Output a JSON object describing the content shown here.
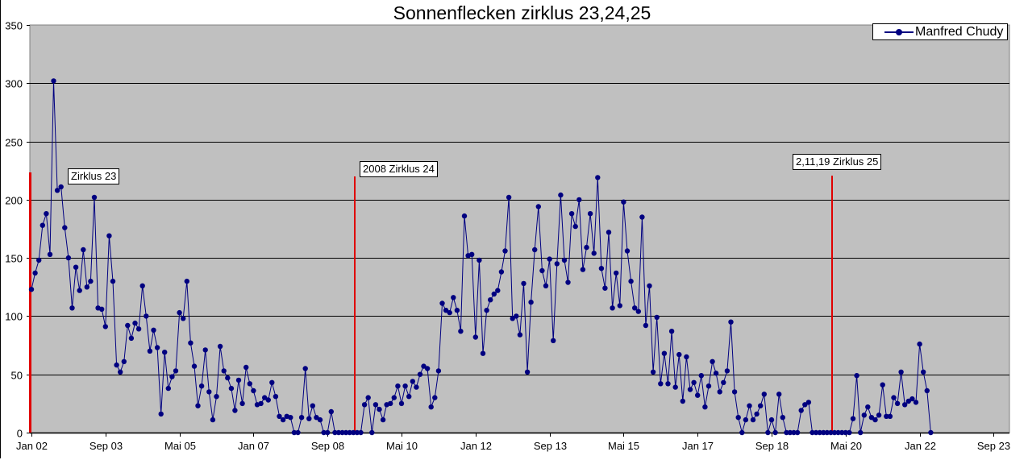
{
  "chart_data": {
    "type": "line",
    "title": "Sonnenflecken zirklus 23,24,25",
    "xlabel": "",
    "ylabel": "",
    "ylim": [
      0,
      350
    ],
    "yticks": [
      0,
      50,
      100,
      150,
      200,
      250,
      300,
      350
    ],
    "xticks": [
      "Jan 02",
      "Sep 03",
      "Mai 05",
      "Jan 07",
      "Sep 08",
      "Mai 10",
      "Jan 12",
      "Sep 13",
      "Mai 15",
      "Jan 17",
      "Sep 18",
      "Mai 20",
      "Jan 22",
      "Sep 23"
    ],
    "grid": true,
    "legend_position": "top-right",
    "background": "#c0c0c0",
    "series": [
      {
        "name": "Manfred Chudy",
        "color": "#000080",
        "x_start": "Jan 02",
        "x_step": "1 month",
        "values": [
          123,
          137,
          148,
          178,
          188,
          153,
          302,
          208,
          211,
          176,
          150,
          107,
          142,
          122,
          157,
          125,
          130,
          202,
          107,
          106,
          91,
          169,
          130,
          58,
          52,
          61,
          92,
          81,
          94,
          89,
          126,
          100,
          70,
          88,
          73,
          16,
          69,
          38,
          48,
          53,
          103,
          98,
          130,
          77,
          57,
          23,
          40,
          71,
          35,
          11,
          31,
          74,
          53,
          47,
          38,
          19,
          45,
          25,
          56,
          42,
          36,
          24,
          25,
          30,
          28,
          43,
          31,
          14,
          11,
          14,
          13,
          0,
          0,
          13,
          55,
          12,
          23,
          13,
          11,
          0,
          0,
          18,
          0,
          0,
          0,
          0,
          0,
          0,
          0,
          0,
          24,
          30,
          0,
          24,
          20,
          11,
          24,
          25,
          30,
          40,
          25,
          40,
          31,
          44,
          39,
          50,
          57,
          55,
          22,
          30,
          53,
          111,
          105,
          103,
          116,
          105,
          87,
          186,
          152,
          153,
          82,
          148,
          68,
          105,
          114,
          119,
          122,
          138,
          156,
          202,
          98,
          100,
          84,
          128,
          52,
          112,
          157,
          194,
          139,
          126,
          149,
          79,
          145,
          204,
          148,
          129,
          188,
          177,
          200,
          140,
          159,
          188,
          154,
          219,
          141,
          124,
          172,
          107,
          137,
          109,
          198,
          156,
          130,
          107,
          104,
          185,
          92,
          126,
          52,
          99,
          42,
          68,
          42,
          87,
          39,
          67,
          27,
          65,
          37,
          43,
          32,
          49,
          22,
          40,
          61,
          51,
          35,
          43,
          53,
          95,
          35,
          13,
          0,
          11,
          23,
          11,
          16,
          23,
          33,
          0,
          11,
          0,
          33,
          13,
          0,
          0,
          0,
          0,
          19,
          24,
          26,
          0,
          0,
          0,
          0,
          0,
          0,
          0,
          0,
          0,
          0,
          0,
          12,
          49,
          0,
          15,
          22,
          13,
          11,
          15,
          41,
          14,
          14,
          30,
          25,
          52,
          24,
          27,
          29,
          26,
          76,
          52,
          36,
          0
        ]
      }
    ],
    "annotations": [
      {
        "text": "Zirklus 23",
        "at": "Jan 02",
        "line_top": 222
      },
      {
        "text": "2008 Zirklus 24",
        "at": "Dez 08",
        "line_top": 220
      },
      {
        "text": "2,11,19 Zirklus 25",
        "at": "Dez 19",
        "line_top": 220
      }
    ]
  },
  "legend": {
    "label": "Manfred Chudy"
  }
}
